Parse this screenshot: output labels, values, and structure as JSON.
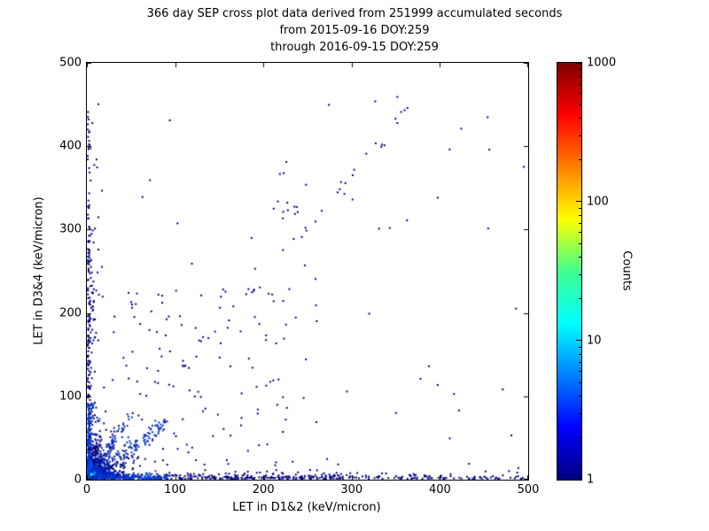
{
  "figure": {
    "background": "#ffffff"
  },
  "chart_data": {
    "type": "scatter",
    "title": "366 day SEP cross plot data derived from 251999 accumulated seconds",
    "subtitle_lines": [
      "from 2015-09-16 DOY:259",
      "through 2016-09-15 DOY:259"
    ],
    "xlabel": "LET in D1&2 (keV/micron)",
    "ylabel": "LET in D3&4 (keV/micron)",
    "xlim": [
      0,
      500
    ],
    "ylim": [
      0,
      500
    ],
    "x_ticks": [
      0,
      100,
      200,
      300,
      400,
      500
    ],
    "y_ticks": [
      0,
      100,
      200,
      300,
      400,
      500
    ],
    "grid": false,
    "point_color_low": "#000080",
    "colorbar": {
      "label": "Counts",
      "scale": "log",
      "min": 1,
      "max": 1000,
      "ticks": [
        1,
        10,
        100,
        1000
      ],
      "colormap": "jet",
      "gradient_stops": [
        {
          "pos": 0.0,
          "color": "#00007f"
        },
        {
          "pos": 0.125,
          "color": "#0000ff"
        },
        {
          "pos": 0.375,
          "color": "#00ffff"
        },
        {
          "pos": 0.5,
          "color": "#40ff90"
        },
        {
          "pos": 0.625,
          "color": "#ffff00"
        },
        {
          "pos": 0.875,
          "color": "#ff0000"
        },
        {
          "pos": 1.0,
          "color": "#7f0000"
        }
      ]
    },
    "seed": 20160915,
    "clusters": [
      {
        "kind": "exp",
        "n": 700,
        "x_scale": 14,
        "y_scale": 14,
        "color": "#000080",
        "size": 2
      },
      {
        "kind": "exp",
        "n": 450,
        "x_scale": 7,
        "y_scale": 7,
        "color": "#0018c8",
        "size": 2
      },
      {
        "kind": "exp",
        "n": 300,
        "x_scale": 4,
        "y_scale": 4,
        "color": "#0060ff",
        "size": 2
      },
      {
        "kind": "exp",
        "n": 200,
        "x_scale": 2.5,
        "y_scale": 2.5,
        "color": "#00c8ff",
        "size": 2
      },
      {
        "kind": "exp",
        "n": 90,
        "x_scale": 1.5,
        "y_scale": 1.5,
        "color": "#20ffc0",
        "size": 2
      },
      {
        "kind": "band_x",
        "n": 300,
        "x_min": 0,
        "x_max": 300,
        "y_scale": 2.5,
        "color": "#000080",
        "size": 2
      },
      {
        "kind": "band_x",
        "n": 90,
        "x_min": 300,
        "x_max": 500,
        "y_scale": 2.0,
        "color": "#000080",
        "size": 2
      },
      {
        "kind": "band_x",
        "n": 140,
        "x_min": 0,
        "x_max": 90,
        "y_scale": 2.0,
        "color": "#0040e0",
        "size": 2
      },
      {
        "kind": "band_y",
        "n": 200,
        "y_min": 0,
        "y_max": 280,
        "x_scale": 2.5,
        "color": "#000080",
        "size": 2
      },
      {
        "kind": "band_y",
        "n": 45,
        "y_min": 280,
        "y_max": 440,
        "x_scale": 2.5,
        "color": "#000080",
        "size": 2
      },
      {
        "kind": "band_y",
        "n": 110,
        "y_min": 0,
        "y_max": 90,
        "x_scale": 2.0,
        "color": "#0040e0",
        "size": 2
      },
      {
        "kind": "diag",
        "n": 130,
        "t_min": 5,
        "t_max": 90,
        "slope": 0.75,
        "sigma": 6,
        "color": "#0030c0",
        "size": 2
      },
      {
        "kind": "diag",
        "n": 70,
        "t_min": 3,
        "t_max": 50,
        "slope": 1.55,
        "sigma": 5,
        "color": "#0030c0",
        "size": 2
      },
      {
        "kind": "diag",
        "n": 36,
        "t_min": 90,
        "t_max": 362,
        "slope": 1.22,
        "sigma": 5,
        "color": "#000080",
        "size": 2
      },
      {
        "kind": "uniform",
        "n": 10,
        "x_min": 208,
        "x_max": 238,
        "y_min": 295,
        "y_max": 335,
        "color": "#000080",
        "size": 2
      },
      {
        "kind": "uniform",
        "n": 130,
        "x_min": 0,
        "x_max": 260,
        "y_min": 0,
        "y_max": 230,
        "color": "#000080",
        "size": 2
      },
      {
        "kind": "uniform",
        "n": 55,
        "x_min": 0,
        "x_max": 500,
        "y_min": 0,
        "y_max": 460,
        "color": "#000080",
        "size": 2
      }
    ],
    "highlight_points": [
      [
        355,
        440
      ],
      [
        93,
        430
      ],
      [
        225,
        380
      ],
      [
        10,
        383
      ],
      [
        300,
        335
      ],
      [
        62,
        338
      ],
      [
        12,
        275
      ],
      [
        480,
        52
      ],
      [
        432,
        18
      ],
      [
        246,
        256
      ],
      [
        160,
        190
      ],
      [
        330,
        300
      ],
      [
        377,
        120
      ],
      [
        205,
        222
      ]
    ]
  }
}
